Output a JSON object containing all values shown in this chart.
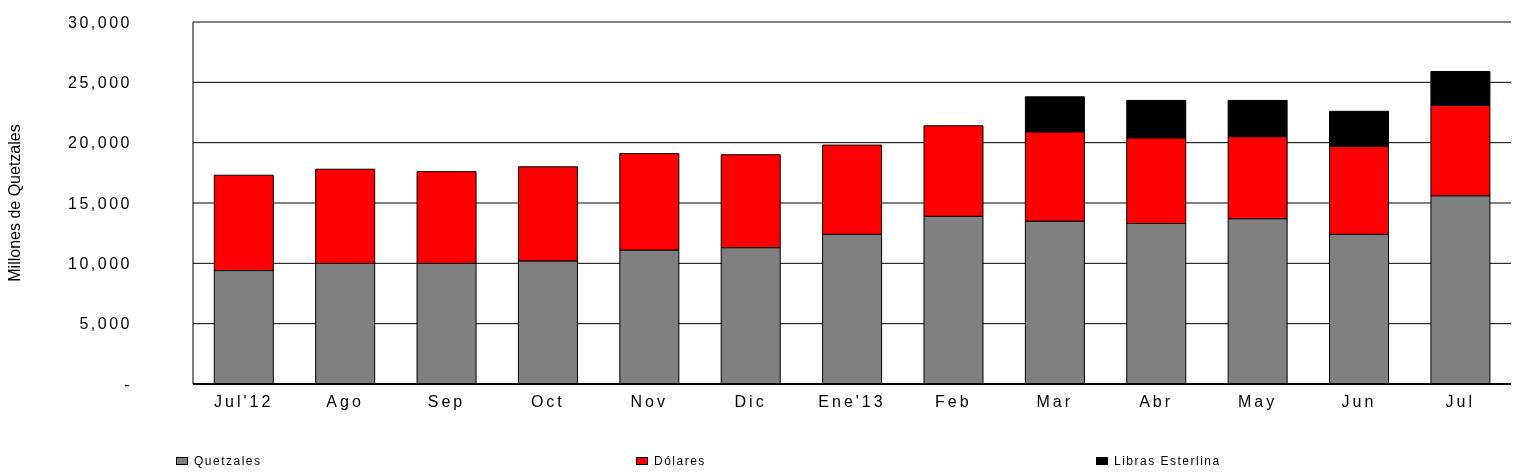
{
  "chart_data": {
    "type": "bar",
    "stacked": true,
    "ylabel": "Millones de Quetzales",
    "categories": [
      "Jul'12",
      "Ago",
      "Sep",
      "Oct",
      "Nov",
      "Dic",
      "Ene'13",
      "Feb",
      "Mar",
      "Abr",
      "May",
      "Jun",
      "Jul"
    ],
    "series": [
      {
        "name": "Quetzales",
        "color": "#808080",
        "values": [
          9400,
          10000,
          10000,
          10200,
          11100,
          11300,
          12400,
          13900,
          13500,
          13300,
          13700,
          12400,
          15600
        ]
      },
      {
        "name": "Dólares",
        "color": "#ff0000",
        "values": [
          7900,
          7800,
          7600,
          7800,
          8000,
          7700,
          7400,
          7500,
          7400,
          7100,
          6800,
          7300,
          7500
        ]
      },
      {
        "name": "Libras Esterlina",
        "color": "#000000",
        "values": [
          null,
          null,
          null,
          null,
          null,
          null,
          null,
          null,
          2900,
          3100,
          3000,
          2900,
          2800
        ]
      }
    ],
    "ylim": [
      0,
      30000
    ],
    "yticks": [
      {
        "value": 0,
        "label": "-"
      },
      {
        "value": 5000,
        "label": "5,000"
      },
      {
        "value": 10000,
        "label": "10,000"
      },
      {
        "value": 15000,
        "label": "15,000"
      },
      {
        "value": 20000,
        "label": "20,000"
      },
      {
        "value": 25000,
        "label": "25,000"
      },
      {
        "value": 30000,
        "label": "30,000"
      }
    ],
    "grid": "y",
    "legend": "bottom"
  }
}
